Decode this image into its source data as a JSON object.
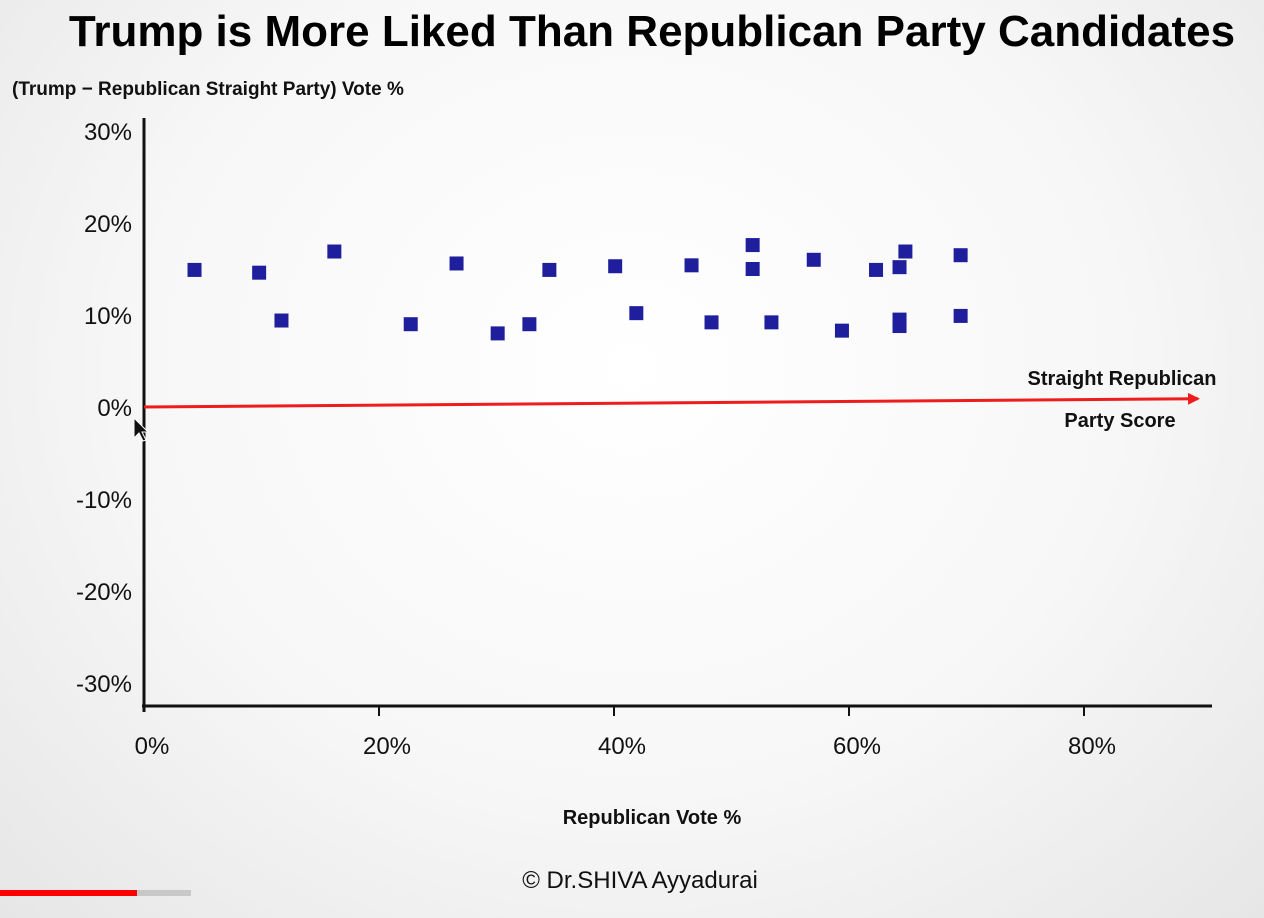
{
  "chart_data": {
    "type": "scatter",
    "title": "Trump is More Liked Than Republican Party Candidates",
    "ylabel": "(Trump − Republican Straight Party) Vote %",
    "xlabel": "Republican Vote %",
    "xlim": [
      0,
      90
    ],
    "ylim": [
      -30,
      30
    ],
    "x_ticks": [
      0,
      20,
      40,
      60,
      80
    ],
    "x_tick_labels": [
      "0%",
      "20%",
      "40%",
      "60%",
      "80%"
    ],
    "y_ticks": [
      30,
      20,
      10,
      0,
      -10,
      -20,
      -30
    ],
    "y_tick_labels": [
      "30%",
      "20%",
      "10%",
      "0%",
      "-10%",
      "-20%",
      "-30%"
    ],
    "grid": false,
    "marker_color": "#1f1f9e",
    "reference_line": {
      "color": "#ee1c1c",
      "y_start": 0,
      "y_end": 0.9,
      "label_line1": "Straight Republican",
      "label_line2": "Party Score"
    },
    "points": [
      {
        "x": 4.3,
        "y": 14.9
      },
      {
        "x": 9.8,
        "y": 14.6
      },
      {
        "x": 11.7,
        "y": 9.4
      },
      {
        "x": 16.2,
        "y": 16.9
      },
      {
        "x": 22.7,
        "y": 9.0
      },
      {
        "x": 26.6,
        "y": 15.6
      },
      {
        "x": 30.1,
        "y": 8.0
      },
      {
        "x": 32.8,
        "y": 9.0
      },
      {
        "x": 34.5,
        "y": 14.9
      },
      {
        "x": 40.1,
        "y": 15.3
      },
      {
        "x": 41.9,
        "y": 10.2
      },
      {
        "x": 46.6,
        "y": 15.4
      },
      {
        "x": 48.3,
        "y": 9.2
      },
      {
        "x": 51.8,
        "y": 17.6
      },
      {
        "x": 51.8,
        "y": 15.0
      },
      {
        "x": 53.4,
        "y": 9.2
      },
      {
        "x": 57.0,
        "y": 16.0
      },
      {
        "x": 59.4,
        "y": 8.3
      },
      {
        "x": 62.3,
        "y": 14.9
      },
      {
        "x": 64.3,
        "y": 15.2
      },
      {
        "x": 64.8,
        "y": 16.9
      },
      {
        "x": 64.3,
        "y": 9.5
      },
      {
        "x": 64.3,
        "y": 8.8
      },
      {
        "x": 69.5,
        "y": 16.5
      },
      {
        "x": 69.5,
        "y": 9.9
      }
    ]
  },
  "footer": {
    "copyright": "© Dr.SHIVA Ayyadurai"
  },
  "video_player": {
    "played_fraction": 0.108,
    "buffered_fraction": 0.151,
    "played_color": "#ff0000",
    "buffered_color": "#c8c8c8"
  }
}
